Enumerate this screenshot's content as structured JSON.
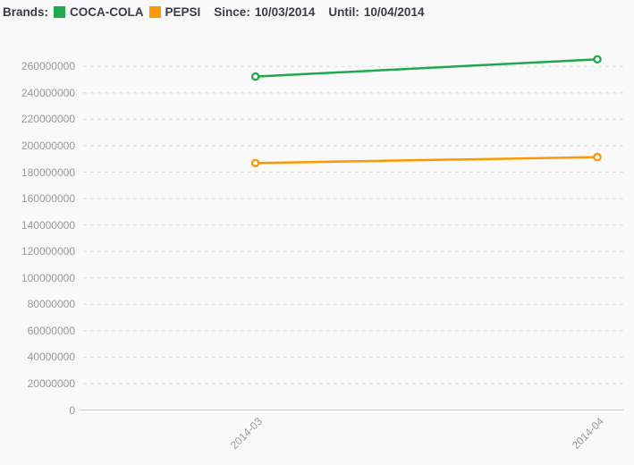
{
  "header": {
    "brands_label": "Brands:",
    "legend": [
      {
        "name": "COCA-COLA",
        "color": "#1fa84e"
      },
      {
        "name": "PEPSI",
        "color": "#ff9800"
      }
    ],
    "since_label": "Since:",
    "since_value": "10/03/2014",
    "until_label": "Until:",
    "until_value": "10/04/2014"
  },
  "chart_data": {
    "type": "line",
    "categories": [
      "2014-03",
      "2014-04"
    ],
    "series": [
      {
        "name": "COCA-COLA",
        "color": "#1fa84e",
        "values": [
          252300000,
          265400000
        ]
      },
      {
        "name": "PEPSI",
        "color": "#ff9800",
        "values": [
          186900000,
          191400000
        ]
      }
    ],
    "ylim": [
      0,
      260000000
    ],
    "yticks": [
      "0",
      "20000000",
      "40000000",
      "60000000",
      "80000000",
      "100000000",
      "120000000",
      "140000000",
      "160000000",
      "180000000",
      "200000000",
      "220000000",
      "240000000",
      "260000000"
    ],
    "grid": "horizontal-dashed",
    "legend_position": "top",
    "marker": "hollow-circle",
    "colors": {
      "background": "#f9f9f9",
      "gridline": "#dcdcdc",
      "zero_line": "#cbcbcb",
      "tick_text": "#9a9a9a",
      "header_text": "#3c3c49"
    }
  }
}
